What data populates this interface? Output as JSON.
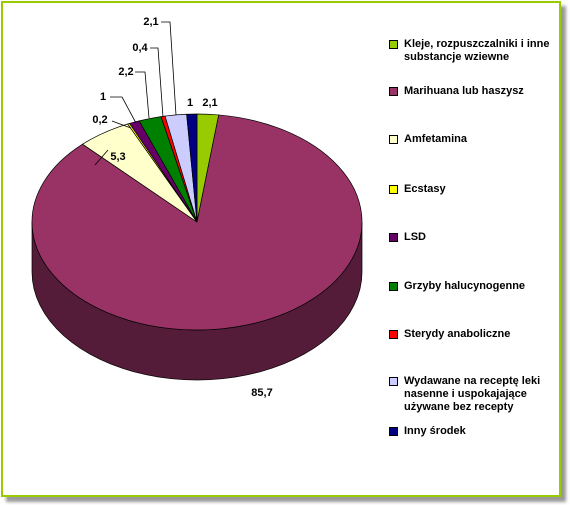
{
  "chart_data": {
    "type": "pie",
    "categories": [
      "Kleje, rozpuszczalniki i inne substancje wziewne",
      "Marihuana lub haszysz",
      "Amfetamina",
      "Ecstasy",
      "LSD",
      "Grzyby halucynogenne",
      "Sterydy anaboliczne",
      "Wydawane na receptę leki nasenne i uspokajające używane bez recepty",
      "Inny środek"
    ],
    "values": [
      2.1,
      85.7,
      5.3,
      0.2,
      1,
      2.2,
      0.4,
      2.1,
      1
    ],
    "value_labels": [
      "2,1",
      "85,7",
      "5,3",
      "0,2",
      "1",
      "2,2",
      "0,4",
      "2,1",
      "1"
    ],
    "colors": [
      "#99cc00",
      "#993366",
      "#ffffcc",
      "#ffff00",
      "#660066",
      "#008000",
      "#ff0000",
      "#ccccff",
      "#000080"
    ]
  }
}
